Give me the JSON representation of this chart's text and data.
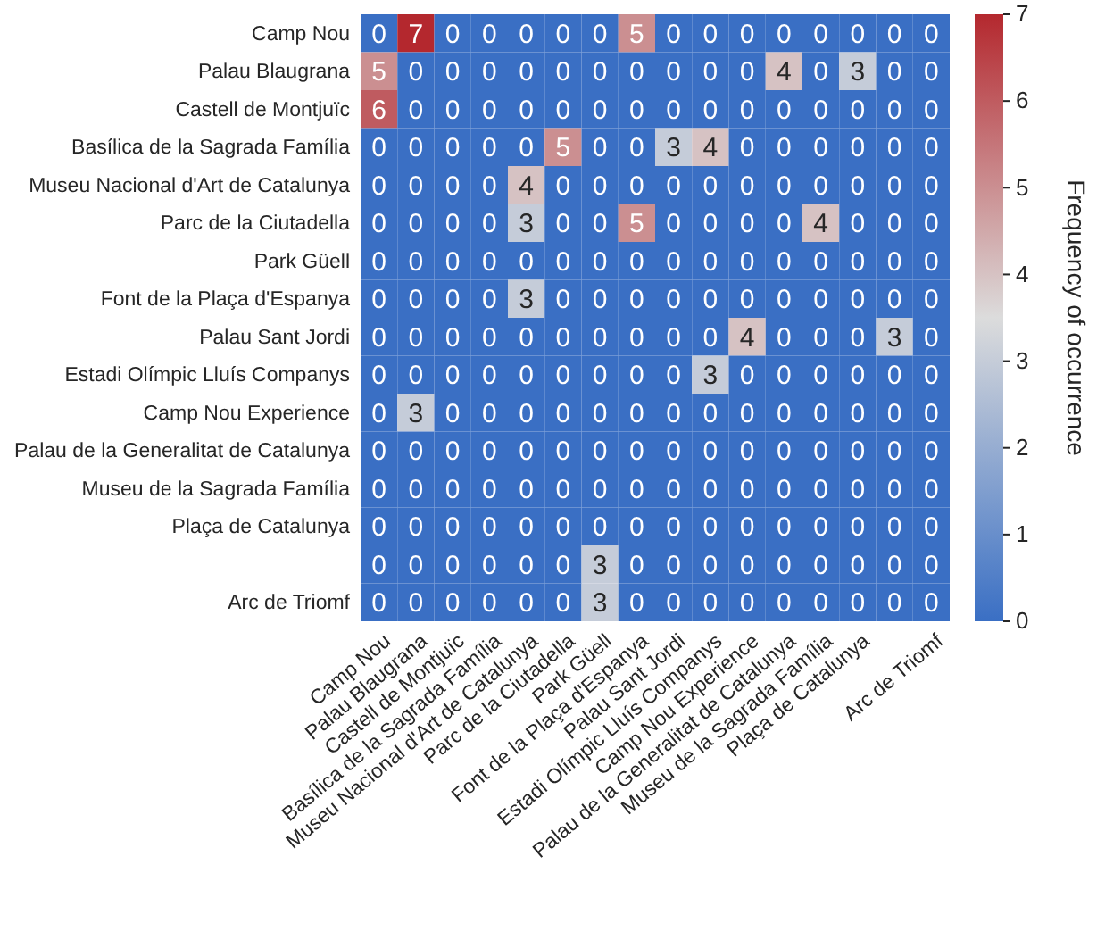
{
  "chart_data": {
    "type": "heatmap",
    "clabel": "Frequency of occurrence",
    "data_labels": true,
    "categories": [
      "Camp Nou",
      "Palau Blaugrana",
      "Castell de Montjuïc",
      "Basílica de la Sagrada Família",
      "Museu Nacional d'Art de Catalunya",
      "Parc de la Ciutadella",
      "Park Güell",
      "Font de la Plaça d'Espanya",
      "Palau Sant Jordi",
      "Estadi Olímpic Lluís Companys",
      "Camp Nou Experience",
      "Palau de la Generalitat de Catalunya",
      "Museu de la Sagrada Família",
      "Plaça de Catalunya",
      null,
      "Arc de Triomf"
    ],
    "y_categories": [
      "Camp Nou",
      "Palau Blaugrana",
      "Castell de Montjuïc",
      "Basílica de la Sagrada Família",
      "Museu Nacional d'Art de Catalunya",
      "Parc de la Ciutadella",
      "Park Güell",
      "Font de la Plaça d'Espanya",
      "Palau Sant Jordi",
      "Estadi Olímpic Lluís Companys",
      "Camp Nou Experience",
      "Palau de la Generalitat de Catalunya",
      "Museu de la Sagrada Família",
      "Plaça de Catalunya",
      null,
      "Arc de Triomf"
    ],
    "cells": [
      [
        0,
        7,
        0,
        0,
        0,
        0,
        0,
        5,
        0,
        0,
        0,
        0,
        0,
        0,
        0,
        0
      ],
      [
        5,
        0,
        0,
        0,
        0,
        0,
        0,
        0,
        0,
        0,
        0,
        4,
        0,
        3,
        0,
        0
      ],
      [
        6,
        0,
        0,
        0,
        0,
        0,
        0,
        0,
        0,
        0,
        0,
        0,
        0,
        0,
        0,
        0
      ],
      [
        0,
        0,
        0,
        0,
        0,
        5,
        0,
        0,
        3,
        4,
        0,
        0,
        0,
        0,
        0,
        0
      ],
      [
        0,
        0,
        0,
        0,
        4,
        0,
        0,
        0,
        0,
        0,
        0,
        0,
        0,
        0,
        0,
        0
      ],
      [
        0,
        0,
        0,
        0,
        3,
        0,
        0,
        5,
        0,
        0,
        0,
        0,
        4,
        0,
        0,
        0
      ],
      [
        0,
        0,
        0,
        0,
        0,
        0,
        0,
        0,
        0,
        0,
        0,
        0,
        0,
        0,
        0,
        0
      ],
      [
        0,
        0,
        0,
        0,
        3,
        0,
        0,
        0,
        0,
        0,
        0,
        0,
        0,
        0,
        0,
        0
      ],
      [
        0,
        0,
        0,
        0,
        0,
        0,
        0,
        0,
        0,
        0,
        4,
        0,
        0,
        0,
        3,
        0
      ],
      [
        0,
        0,
        0,
        0,
        0,
        0,
        0,
        0,
        0,
        3,
        0,
        0,
        0,
        0,
        0,
        0
      ],
      [
        0,
        3,
        0,
        0,
        0,
        0,
        0,
        0,
        0,
        0,
        0,
        0,
        0,
        0,
        0,
        0
      ],
      [
        0,
        0,
        0,
        0,
        0,
        0,
        0,
        0,
        0,
        0,
        0,
        0,
        0,
        0,
        0,
        0
      ],
      [
        0,
        0,
        0,
        0,
        0,
        0,
        0,
        0,
        0,
        0,
        0,
        0,
        0,
        0,
        0,
        0
      ],
      [
        0,
        0,
        0,
        0,
        0,
        0,
        0,
        0,
        0,
        0,
        0,
        0,
        0,
        0,
        0,
        0
      ],
      [
        0,
        0,
        0,
        0,
        0,
        0,
        3,
        0,
        0,
        0,
        0,
        0,
        0,
        0,
        0,
        0
      ],
      [
        0,
        0,
        0,
        0,
        0,
        0,
        3,
        0,
        0,
        0,
        0,
        0,
        0,
        0,
        0,
        0
      ]
    ],
    "clim": [
      0,
      7
    ],
    "cticks": [
      0,
      1,
      2,
      3,
      4,
      5,
      6,
      7
    ]
  }
}
